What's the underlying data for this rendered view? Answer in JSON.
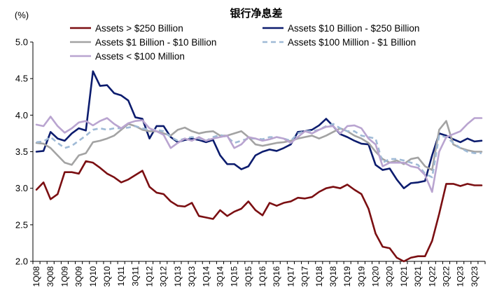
{
  "chart_data": {
    "type": "line",
    "title": "银行净息差",
    "unit_label": "(%)",
    "ylim": [
      2.0,
      5.0
    ],
    "ytick_labels": [
      "5.0",
      "4.5",
      "4.0",
      "3.5",
      "3.0",
      "2.5",
      "2.0"
    ],
    "ytick_values": [
      5.0,
      4.5,
      4.0,
      3.5,
      3.0,
      2.5,
      2.0
    ],
    "x_categories": [
      "1Q08",
      "2Q08",
      "3Q08",
      "4Q08",
      "1Q09",
      "2Q09",
      "3Q09",
      "4Q09",
      "1Q10",
      "2Q10",
      "3Q10",
      "4Q10",
      "1Q11",
      "2Q11",
      "3Q11",
      "4Q11",
      "1Q12",
      "2Q12",
      "3Q12",
      "4Q12",
      "1Q13",
      "2Q13",
      "3Q13",
      "4Q13",
      "1Q14",
      "2Q14",
      "3Q14",
      "4Q14",
      "1Q15",
      "2Q15",
      "3Q15",
      "4Q15",
      "1Q16",
      "2Q16",
      "3Q16",
      "4Q16",
      "1Q17",
      "2Q17",
      "3Q17",
      "4Q17",
      "1Q18",
      "2Q18",
      "3Q18",
      "4Q18",
      "1Q19",
      "2Q19",
      "3Q19",
      "4Q19",
      "1Q20",
      "2Q20",
      "3Q20",
      "4Q20",
      "1Q21",
      "2Q21",
      "3Q21",
      "4Q21",
      "1Q22",
      "2Q22",
      "3Q22",
      "4Q22",
      "1Q23",
      "2Q23",
      "3Q23",
      "4Q23"
    ],
    "x_tick_labels": [
      "1Q08",
      "3Q08",
      "1Q09",
      "3Q09",
      "1Q10",
      "3Q10",
      "1Q11",
      "3Q11",
      "1Q12",
      "3Q12",
      "1Q13",
      "3Q13",
      "1Q14",
      "3Q14",
      "1Q15",
      "3Q15",
      "1Q16",
      "3Q16",
      "1Q17",
      "3Q17",
      "1Q18",
      "3Q18",
      "1Q19",
      "3Q19",
      "1Q20",
      "3Q20",
      "1Q21",
      "3Q21",
      "1Q22",
      "3Q22",
      "1Q23",
      "3Q23"
    ],
    "series": [
      {
        "name": "Assets > $250 Billion",
        "color": "#7b0f12",
        "dash": "solid",
        "values": [
          2.98,
          3.08,
          2.85,
          2.92,
          3.22,
          3.22,
          3.2,
          3.37,
          3.35,
          3.28,
          3.2,
          3.15,
          3.08,
          3.12,
          3.18,
          3.24,
          3.02,
          2.94,
          2.92,
          2.82,
          2.76,
          2.75,
          2.8,
          2.62,
          2.6,
          2.58,
          2.7,
          2.62,
          2.68,
          2.72,
          2.82,
          2.7,
          2.63,
          2.8,
          2.76,
          2.8,
          2.82,
          2.87,
          2.86,
          2.88,
          2.95,
          3.0,
          3.02,
          3.0,
          3.05,
          2.98,
          2.92,
          2.72,
          2.38,
          2.2,
          2.18,
          2.05,
          2.0,
          2.05,
          2.07,
          2.07,
          2.28,
          2.65,
          3.06,
          3.06,
          3.03,
          3.06,
          3.04,
          3.04
        ]
      },
      {
        "name": "Assets  $10 Billion - $250 Billion",
        "color": "#0c1c6e",
        "dash": "solid",
        "values": [
          3.5,
          3.51,
          3.77,
          3.68,
          3.65,
          3.75,
          3.82,
          3.79,
          4.6,
          4.4,
          4.41,
          4.3,
          4.27,
          4.2,
          3.97,
          3.95,
          3.68,
          3.85,
          3.85,
          3.7,
          3.63,
          3.66,
          3.68,
          3.66,
          3.63,
          3.66,
          3.45,
          3.33,
          3.33,
          3.26,
          3.3,
          3.45,
          3.5,
          3.53,
          3.51,
          3.55,
          3.6,
          3.77,
          3.78,
          3.8,
          3.86,
          3.95,
          3.85,
          3.74,
          3.7,
          3.65,
          3.61,
          3.6,
          3.32,
          3.25,
          3.27,
          3.12,
          3.0,
          3.07,
          3.08,
          3.1,
          3.45,
          3.75,
          3.72,
          3.67,
          3.63,
          3.68,
          3.64,
          3.65
        ]
      },
      {
        "name": "Assets $1 Billion - $10 Billion",
        "color": "#a3a3a3",
        "dash": "solid",
        "values": [
          3.62,
          3.61,
          3.55,
          3.45,
          3.35,
          3.32,
          3.45,
          3.48,
          3.63,
          3.65,
          3.68,
          3.72,
          3.8,
          3.88,
          3.85,
          3.8,
          3.78,
          3.78,
          3.75,
          3.72,
          3.8,
          3.83,
          3.78,
          3.75,
          3.77,
          3.78,
          3.72,
          3.72,
          3.75,
          3.78,
          3.7,
          3.6,
          3.58,
          3.6,
          3.62,
          3.63,
          3.65,
          3.68,
          3.7,
          3.72,
          3.68,
          3.72,
          3.77,
          3.82,
          3.78,
          3.72,
          3.68,
          3.62,
          3.5,
          3.4,
          3.35,
          3.38,
          3.33,
          3.4,
          3.42,
          3.3,
          3.25,
          3.8,
          3.92,
          3.6,
          3.55,
          3.52,
          3.5,
          3.5
        ]
      },
      {
        "name": "Assets $100 Million - $1 Billion",
        "color": "#9fbad6",
        "dash": "dashed",
        "values": [
          3.63,
          3.64,
          3.7,
          3.62,
          3.55,
          3.58,
          3.65,
          3.72,
          3.8,
          3.82,
          3.8,
          3.82,
          3.82,
          3.83,
          3.85,
          3.82,
          3.8,
          3.8,
          3.78,
          3.7,
          3.65,
          3.68,
          3.7,
          3.68,
          3.65,
          3.7,
          3.73,
          3.7,
          3.62,
          3.65,
          3.68,
          3.68,
          3.67,
          3.7,
          3.7,
          3.68,
          3.65,
          3.75,
          3.78,
          3.78,
          3.8,
          3.85,
          3.88,
          3.82,
          3.78,
          3.78,
          3.72,
          3.7,
          3.68,
          3.35,
          3.4,
          3.4,
          3.38,
          3.35,
          3.32,
          3.2,
          3.15,
          3.72,
          3.7,
          3.62,
          3.55,
          3.5,
          3.48,
          3.48
        ]
      },
      {
        "name": "Assets < $100 Million",
        "color": "#b9a4d0",
        "dash": "solid",
        "values": [
          3.87,
          3.85,
          3.98,
          3.85,
          3.76,
          3.82,
          3.9,
          3.92,
          3.86,
          3.92,
          3.96,
          3.88,
          3.82,
          3.89,
          3.92,
          3.93,
          3.82,
          3.78,
          3.73,
          3.55,
          3.62,
          3.68,
          3.65,
          3.7,
          3.65,
          3.68,
          3.7,
          3.72,
          3.55,
          3.6,
          3.7,
          3.68,
          3.65,
          3.67,
          3.7,
          3.68,
          3.62,
          3.7,
          3.78,
          3.75,
          3.8,
          3.84,
          3.85,
          3.75,
          3.85,
          3.86,
          3.82,
          3.68,
          3.6,
          3.3,
          3.35,
          3.35,
          3.35,
          3.3,
          3.28,
          3.18,
          2.95,
          3.5,
          3.7,
          3.74,
          3.78,
          3.88,
          3.96,
          3.96
        ]
      }
    ]
  }
}
